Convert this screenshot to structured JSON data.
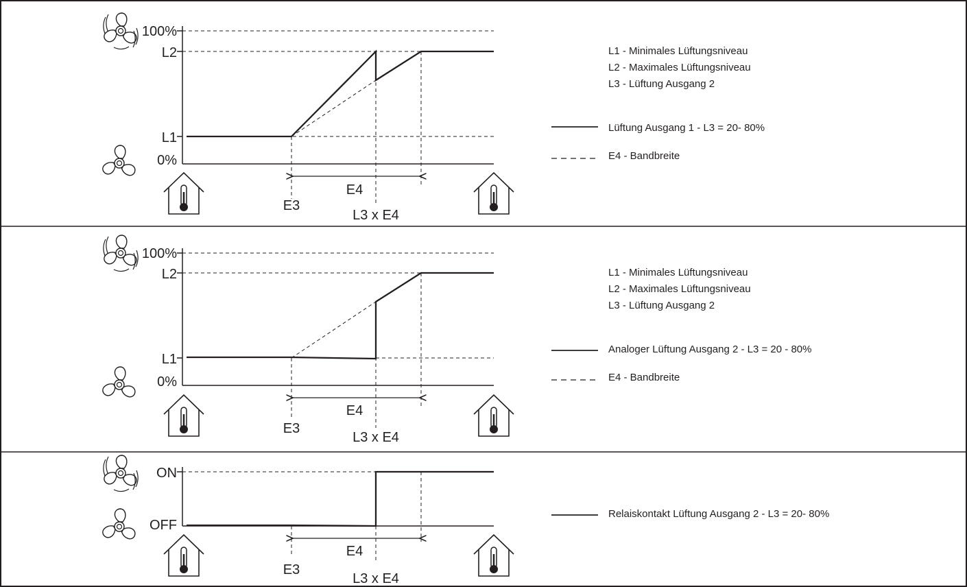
{
  "panels": [
    {
      "y_ticks": [
        "100%",
        "L2",
        "L1",
        "0%"
      ],
      "x_labels": {
        "e3": "E3",
        "e4": "E4",
        "l3e4": "L3 x E4"
      },
      "legend_defs": [
        "L1 - Minimales Lüftungsniveau",
        "L2 - Maximales Lüftungsniveau",
        "L3 - Lüftung Ausgang 2"
      ],
      "legend_solid": "Lüftung Ausgang 1 - L3 = 20- 80%",
      "legend_dashed": "E4 - Bandbreite"
    },
    {
      "y_ticks": [
        "100%",
        "L2",
        "L1",
        "0%"
      ],
      "x_labels": {
        "e3": "E3",
        "e4": "E4",
        "l3e4": "L3 x E4"
      },
      "legend_defs": [
        "L1 - Minimales Lüftungsniveau",
        "L2 - Maximales Lüftungsniveau",
        "L3 - Lüftung Ausgang 2"
      ],
      "legend_solid": "Analoger Lüftung Ausgang 2 - L3 = 20 - 80%",
      "legend_dashed": "E4 - Bandbreite"
    },
    {
      "y_ticks": [
        "ON",
        "OFF"
      ],
      "x_labels": {
        "e3": "E3",
        "e4": "E4",
        "l3e4": "L3 x E4"
      },
      "legend_solid": "Relaiskontakt Lüftung Ausgang 2 - L3 = 20- 80%"
    }
  ],
  "icons": {
    "fan_fast": "fan-fast-icon",
    "fan_slow": "fan-slow-icon",
    "house_thermometer": "house-thermometer-icon"
  },
  "colors": {
    "line": "#231f20",
    "background": "#ffffff"
  }
}
